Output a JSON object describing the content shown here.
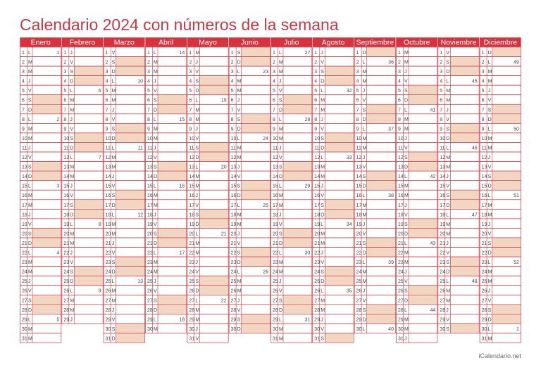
{
  "title": "Calendario 2024 con números de la semana",
  "footer": "iCalendario.net",
  "colors": {
    "header_bg": "#d8323f",
    "border": "#c9363f",
    "weekend_fill": "#f3d6c2",
    "title": "#c23a45"
  },
  "months": [
    "Enero",
    "Febrero",
    "Marzo",
    "Abril",
    "Mayo",
    "Junio",
    "Julio",
    "Agosto",
    "Septiembre",
    "Octubre",
    "Noviembre",
    "Diciembre"
  ],
  "month_days": [
    31,
    29,
    31,
    30,
    31,
    30,
    31,
    31,
    30,
    31,
    30,
    31
  ],
  "month_start_weekday": [
    1,
    4,
    5,
    1,
    3,
    6,
    1,
    4,
    0,
    2,
    5,
    0
  ],
  "weekday_letters": [
    "D",
    "L",
    "M",
    "M",
    "J",
    "V",
    "S"
  ],
  "week_numbers": {
    "Enero": {
      "1": 1,
      "8": 2,
      "15": 3,
      "22": 4,
      "29": 5
    },
    "Febrero": {
      "5": 6,
      "12": 7,
      "19": 8,
      "26": 9
    },
    "Marzo": {
      "4": 10,
      "11": 11,
      "18": 12,
      "25": 13
    },
    "Abril": {
      "1": 14,
      "8": 15,
      "15": 16,
      "22": 17,
      "29": 18
    },
    "Mayo": {
      "6": 19,
      "13": 20,
      "20": 21,
      "27": 22
    },
    "Junio": {
      "3": 23,
      "10": 24,
      "17": 25,
      "24": 26
    },
    "Julio": {
      "1": 27,
      "8": 28,
      "15": 29,
      "22": 30,
      "29": 31
    },
    "Agosto": {
      "5": 32,
      "12": 33,
      "19": 34,
      "26": 35
    },
    "Septiembre": {
      "2": 36,
      "9": 37,
      "16": 38,
      "23": 39,
      "30": 40
    },
    "Octubre": {
      "7": 41,
      "14": 42,
      "21": 43,
      "28": 44
    },
    "Noviembre": {
      "4": 45,
      "11": 46,
      "18": 47,
      "25": 48
    },
    "Diciembre": {
      "2": 49,
      "9": 50,
      "16": 51,
      "23": 52,
      "30": 1
    }
  }
}
